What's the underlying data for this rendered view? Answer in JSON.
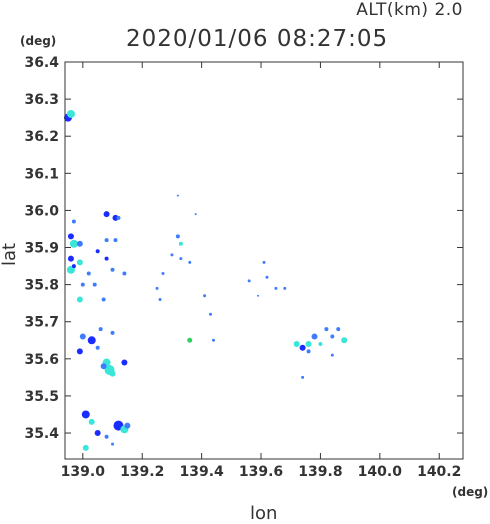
{
  "header": {
    "alt_label": "ALT(km)",
    "alt_value": "2.0",
    "timestamp": "2020/01/06 08:27:05"
  },
  "chart_data": {
    "type": "scatter",
    "title": "2020/01/06 08:27:05",
    "xlabel": "lon",
    "ylabel": "lat",
    "xunit": "(deg)",
    "yunit": "(deg)",
    "xlim": [
      138.94,
      140.28
    ],
    "ylim": [
      35.33,
      36.4
    ],
    "xticks": [
      "139.0",
      "139.2",
      "139.4",
      "139.6",
      "139.8",
      "140.0",
      "140.2"
    ],
    "yticks": [
      "35.4",
      "35.5",
      "35.6",
      "35.7",
      "35.8",
      "35.9",
      "36.0",
      "36.1",
      "36.2",
      "36.3",
      "36.4"
    ],
    "grid": false,
    "colors": {
      "strong": "#1a2cff",
      "medium": "#3f7dff",
      "light": "#39e6d8",
      "green": "#30d060"
    },
    "points": [
      {
        "x": 138.95,
        "y": 36.25,
        "r": 4,
        "c": "strong"
      },
      {
        "x": 138.96,
        "y": 36.26,
        "r": 4,
        "c": "light"
      },
      {
        "x": 138.97,
        "y": 35.97,
        "r": 2,
        "c": "medium"
      },
      {
        "x": 138.96,
        "y": 35.93,
        "r": 3,
        "c": "strong"
      },
      {
        "x": 138.97,
        "y": 35.91,
        "r": 4,
        "c": "light"
      },
      {
        "x": 138.99,
        "y": 35.91,
        "r": 3,
        "c": "medium"
      },
      {
        "x": 138.96,
        "y": 35.87,
        "r": 3,
        "c": "strong"
      },
      {
        "x": 138.99,
        "y": 35.86,
        "r": 3,
        "c": "light"
      },
      {
        "x": 138.96,
        "y": 35.84,
        "r": 4,
        "c": "light"
      },
      {
        "x": 138.97,
        "y": 35.85,
        "r": 2,
        "c": "strong"
      },
      {
        "x": 138.99,
        "y": 35.76,
        "r": 3,
        "c": "light"
      },
      {
        "x": 139.0,
        "y": 35.8,
        "r": 2,
        "c": "medium"
      },
      {
        "x": 139.0,
        "y": 35.66,
        "r": 3,
        "c": "medium"
      },
      {
        "x": 139.03,
        "y": 35.65,
        "r": 4,
        "c": "strong"
      },
      {
        "x": 139.06,
        "y": 35.68,
        "r": 2,
        "c": "medium"
      },
      {
        "x": 138.99,
        "y": 35.62,
        "r": 3,
        "c": "strong"
      },
      {
        "x": 139.05,
        "y": 35.63,
        "r": 2,
        "c": "medium"
      },
      {
        "x": 139.02,
        "y": 35.83,
        "r": 2,
        "c": "medium"
      },
      {
        "x": 139.05,
        "y": 35.89,
        "r": 2,
        "c": "strong"
      },
      {
        "x": 139.04,
        "y": 35.8,
        "r": 2,
        "c": "medium"
      },
      {
        "x": 139.08,
        "y": 35.99,
        "r": 3,
        "c": "strong"
      },
      {
        "x": 139.11,
        "y": 35.98,
        "r": 3,
        "c": "strong"
      },
      {
        "x": 139.12,
        "y": 35.98,
        "r": 2,
        "c": "medium"
      },
      {
        "x": 139.08,
        "y": 35.92,
        "r": 2,
        "c": "medium"
      },
      {
        "x": 139.11,
        "y": 35.92,
        "r": 2,
        "c": "medium"
      },
      {
        "x": 139.08,
        "y": 35.87,
        "r": 2,
        "c": "strong"
      },
      {
        "x": 139.1,
        "y": 35.84,
        "r": 2,
        "c": "medium"
      },
      {
        "x": 139.14,
        "y": 35.83,
        "r": 2,
        "c": "medium"
      },
      {
        "x": 139.07,
        "y": 35.76,
        "r": 2,
        "c": "medium"
      },
      {
        "x": 139.1,
        "y": 35.67,
        "r": 2,
        "c": "medium"
      },
      {
        "x": 139.08,
        "y": 35.59,
        "r": 4,
        "c": "light"
      },
      {
        "x": 139.09,
        "y": 35.57,
        "r": 5,
        "c": "light"
      },
      {
        "x": 139.1,
        "y": 35.56,
        "r": 3,
        "c": "light"
      },
      {
        "x": 139.07,
        "y": 35.58,
        "r": 3,
        "c": "medium"
      },
      {
        "x": 139.14,
        "y": 35.59,
        "r": 3,
        "c": "strong"
      },
      {
        "x": 139.01,
        "y": 35.45,
        "r": 4,
        "c": "strong"
      },
      {
        "x": 139.03,
        "y": 35.43,
        "r": 3,
        "c": "light"
      },
      {
        "x": 139.05,
        "y": 35.4,
        "r": 3,
        "c": "strong"
      },
      {
        "x": 139.08,
        "y": 35.39,
        "r": 2,
        "c": "medium"
      },
      {
        "x": 139.12,
        "y": 35.42,
        "r": 5,
        "c": "strong"
      },
      {
        "x": 139.14,
        "y": 35.41,
        "r": 4,
        "c": "light"
      },
      {
        "x": 139.15,
        "y": 35.42,
        "r": 3,
        "c": "medium"
      },
      {
        "x": 139.01,
        "y": 35.36,
        "r": 3,
        "c": "light"
      },
      {
        "x": 139.1,
        "y": 35.37,
        "r": 1.5,
        "c": "medium"
      },
      {
        "x": 139.32,
        "y": 35.93,
        "r": 2,
        "c": "medium"
      },
      {
        "x": 139.33,
        "y": 35.91,
        "r": 2,
        "c": "light"
      },
      {
        "x": 139.3,
        "y": 35.88,
        "r": 1.5,
        "c": "medium"
      },
      {
        "x": 139.33,
        "y": 35.87,
        "r": 1.5,
        "c": "medium"
      },
      {
        "x": 139.36,
        "y": 35.86,
        "r": 1.5,
        "c": "medium"
      },
      {
        "x": 139.27,
        "y": 35.83,
        "r": 1.5,
        "c": "medium"
      },
      {
        "x": 139.25,
        "y": 35.79,
        "r": 1.5,
        "c": "medium"
      },
      {
        "x": 139.26,
        "y": 35.76,
        "r": 1.5,
        "c": "medium"
      },
      {
        "x": 139.41,
        "y": 35.77,
        "r": 1.5,
        "c": "medium"
      },
      {
        "x": 139.43,
        "y": 35.72,
        "r": 1.5,
        "c": "medium"
      },
      {
        "x": 139.44,
        "y": 35.65,
        "r": 1.5,
        "c": "medium"
      },
      {
        "x": 139.36,
        "y": 35.65,
        "r": 2.5,
        "c": "green"
      },
      {
        "x": 139.32,
        "y": 36.04,
        "r": 1,
        "c": "medium"
      },
      {
        "x": 139.38,
        "y": 35.99,
        "r": 1,
        "c": "medium"
      },
      {
        "x": 139.56,
        "y": 35.81,
        "r": 1.5,
        "c": "medium"
      },
      {
        "x": 139.61,
        "y": 35.86,
        "r": 1.5,
        "c": "medium"
      },
      {
        "x": 139.62,
        "y": 35.82,
        "r": 1.5,
        "c": "medium"
      },
      {
        "x": 139.65,
        "y": 35.79,
        "r": 1.5,
        "c": "medium"
      },
      {
        "x": 139.68,
        "y": 35.79,
        "r": 1.5,
        "c": "medium"
      },
      {
        "x": 139.59,
        "y": 35.77,
        "r": 1,
        "c": "medium"
      },
      {
        "x": 139.72,
        "y": 35.64,
        "r": 3,
        "c": "light"
      },
      {
        "x": 139.74,
        "y": 35.63,
        "r": 3,
        "c": "strong"
      },
      {
        "x": 139.76,
        "y": 35.64,
        "r": 3,
        "c": "light"
      },
      {
        "x": 139.78,
        "y": 35.66,
        "r": 3,
        "c": "medium"
      },
      {
        "x": 139.8,
        "y": 35.64,
        "r": 2,
        "c": "light"
      },
      {
        "x": 139.82,
        "y": 35.68,
        "r": 2,
        "c": "medium"
      },
      {
        "x": 139.84,
        "y": 35.66,
        "r": 2,
        "c": "medium"
      },
      {
        "x": 139.86,
        "y": 35.68,
        "r": 2,
        "c": "medium"
      },
      {
        "x": 139.88,
        "y": 35.65,
        "r": 3,
        "c": "light"
      },
      {
        "x": 139.76,
        "y": 35.62,
        "r": 2,
        "c": "medium"
      },
      {
        "x": 139.74,
        "y": 35.55,
        "r": 1.5,
        "c": "medium"
      },
      {
        "x": 139.84,
        "y": 35.61,
        "r": 1.5,
        "c": "medium"
      }
    ]
  }
}
